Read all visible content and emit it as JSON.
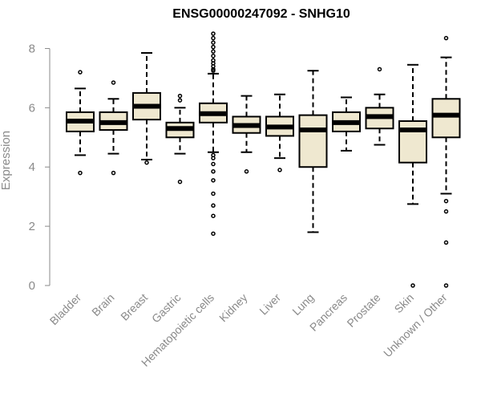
{
  "chart_data": {
    "type": "boxplot",
    "title": "ENSG00000247092 - SNHG10",
    "ylabel": "Expression",
    "xlabel": "",
    "ylim": [
      0,
      8.5
    ],
    "yticks": [
      0,
      2,
      4,
      6,
      8
    ],
    "box_fill": "#efe8d0",
    "stroke": "#000000",
    "axis_color": "#8a8a8a",
    "categories": [
      "Bladder",
      "Brain",
      "Breast",
      "Gastric",
      "Hematopoietic cells",
      "Kidney",
      "Liver",
      "Lung",
      "Pancreas",
      "Prostate",
      "Skin",
      "Unknown / Other"
    ],
    "boxes": [
      {
        "category": "Bladder",
        "whisker_low": 4.4,
        "q1": 5.2,
        "median": 5.55,
        "q3": 5.85,
        "whisker_high": 6.65,
        "outliers": [
          7.2,
          3.8
        ]
      },
      {
        "category": "Brain",
        "whisker_low": 4.45,
        "q1": 5.25,
        "median": 5.5,
        "q3": 5.85,
        "whisker_high": 6.3,
        "outliers": [
          6.85,
          3.8
        ]
      },
      {
        "category": "Breast",
        "whisker_low": 4.25,
        "q1": 5.6,
        "median": 6.05,
        "q3": 6.5,
        "whisker_high": 7.85,
        "outliers": [
          4.15
        ]
      },
      {
        "category": "Gastric",
        "whisker_low": 4.45,
        "q1": 5.0,
        "median": 5.3,
        "q3": 5.5,
        "whisker_high": 6.0,
        "outliers": [
          6.4,
          6.25,
          3.5
        ]
      },
      {
        "category": "Hematopoietic cells",
        "whisker_low": 4.5,
        "q1": 5.5,
        "median": 5.8,
        "q3": 6.15,
        "whisker_high": 7.15,
        "outliers": [
          8.5,
          8.35,
          8.2,
          8.05,
          7.9,
          7.75,
          7.6,
          7.5,
          7.4,
          7.3,
          7.25,
          4.4,
          4.3,
          4.1,
          3.85,
          3.55,
          3.1,
          2.7,
          2.35,
          1.75
        ]
      },
      {
        "category": "Kidney",
        "whisker_low": 4.5,
        "q1": 5.15,
        "median": 5.4,
        "q3": 5.7,
        "whisker_high": 6.4,
        "outliers": [
          3.85
        ]
      },
      {
        "category": "Liver",
        "whisker_low": 4.3,
        "q1": 5.05,
        "median": 5.35,
        "q3": 5.7,
        "whisker_high": 6.45,
        "outliers": [
          3.9
        ]
      },
      {
        "category": "Lung",
        "whisker_low": 1.8,
        "q1": 4.0,
        "median": 5.25,
        "q3": 5.75,
        "whisker_high": 7.25,
        "outliers": []
      },
      {
        "category": "Pancreas",
        "whisker_low": 4.55,
        "q1": 5.2,
        "median": 5.5,
        "q3": 5.85,
        "whisker_high": 6.35,
        "outliers": []
      },
      {
        "category": "Prostate",
        "whisker_low": 4.75,
        "q1": 5.3,
        "median": 5.7,
        "q3": 6.0,
        "whisker_high": 6.45,
        "outliers": [
          7.3
        ]
      },
      {
        "category": "Skin",
        "whisker_low": 2.75,
        "q1": 4.15,
        "median": 5.25,
        "q3": 5.55,
        "whisker_high": 7.45,
        "outliers": [
          0.0
        ]
      },
      {
        "category": "Unknown / Other",
        "whisker_low": 3.1,
        "q1": 5.0,
        "median": 5.75,
        "q3": 6.3,
        "whisker_high": 7.7,
        "outliers": [
          8.35,
          2.85,
          2.5,
          1.45,
          0.0
        ]
      }
    ]
  }
}
